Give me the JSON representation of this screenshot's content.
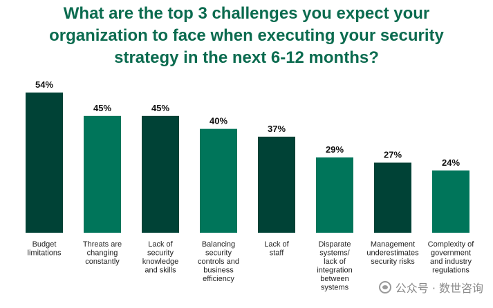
{
  "chart_data": {
    "type": "bar",
    "title_lines": [
      "What are the top 3 challenges you expect your",
      "organization to face when executing your security",
      "strategy in the next 6-12 months?"
    ],
    "categories": [
      [
        "Budget",
        "limitations"
      ],
      [
        "Threats are",
        "changing",
        "constantly"
      ],
      [
        "Lack of",
        "security",
        "knowledge",
        "and skills"
      ],
      [
        "Balancing",
        "security",
        "controls and",
        "business",
        "efficiency"
      ],
      [
        "Lack of",
        "staff"
      ],
      [
        "Disparate",
        "systems/",
        "lack of",
        "integration",
        "between",
        "systems"
      ],
      [
        "Management",
        "underestimates",
        "security risks"
      ],
      [
        "Complexity of",
        "government",
        "and industry",
        "regulations"
      ]
    ],
    "values": [
      54,
      45,
      45,
      40,
      37,
      29,
      27,
      24
    ],
    "value_labels": [
      "54%",
      "45%",
      "45%",
      "40%",
      "37%",
      "29%",
      "27%",
      "24%"
    ],
    "ylim": [
      0,
      54
    ],
    "grid": false,
    "colors": [
      "#004236",
      "#00755a",
      "#004236",
      "#00755a",
      "#004236",
      "#00755a",
      "#004236",
      "#00755a"
    ]
  },
  "watermark": {
    "text": "公众号 · 数世咨询",
    "icon": "wechat-icon"
  }
}
